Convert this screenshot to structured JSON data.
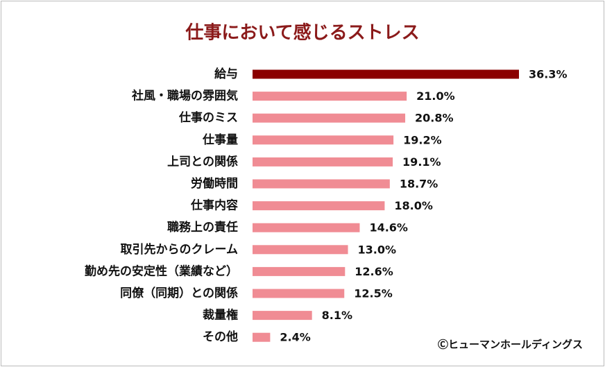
{
  "chart_data": {
    "type": "barh",
    "title": "仕事において感じるストレス",
    "note": "Ⓒヒューマンホールディングス",
    "categories": [
      "給与",
      "社風・職場の雰囲気",
      "仕事のミス",
      "仕事量",
      "上司との関係",
      "労働時間",
      "仕事内容",
      "職務上の責任",
      "取引先からのクレーム",
      "勤め先の安定性（業績など）",
      "同僚（同期）との関係",
      "裁量権",
      "その他"
    ],
    "values": [
      36.3,
      21.0,
      20.8,
      19.2,
      19.1,
      18.7,
      18.0,
      14.6,
      13.0,
      12.6,
      12.5,
      8.1,
      2.4
    ],
    "value_labels": [
      "36.3%",
      "21.0%",
      "20.8%",
      "19.2%",
      "19.1%",
      "18.7%",
      "18.0%",
      "14.6%",
      "13.0%",
      "12.6%",
      "12.5%",
      "8.1%",
      "2.4%"
    ],
    "colors": [
      "#8b0000",
      "#f08c94",
      "#f08c94",
      "#f08c94",
      "#f08c94",
      "#f08c94",
      "#f08c94",
      "#f08c94",
      "#f08c94",
      "#f08c94",
      "#f08c94",
      "#f08c94",
      "#f08c94"
    ]
  }
}
